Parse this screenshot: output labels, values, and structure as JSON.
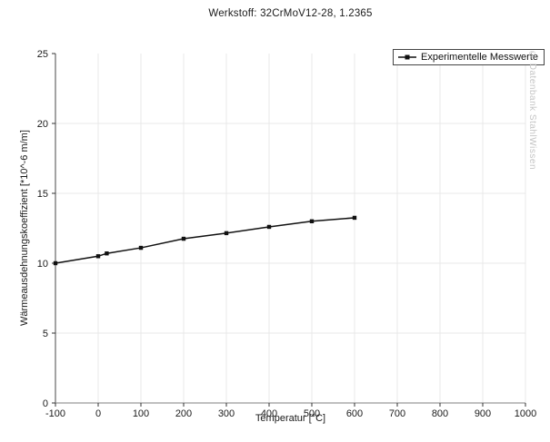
{
  "watermark": "© Datenbank StahlWissen",
  "colors": {
    "grid": "#e9e9e9",
    "x_axis": "#999999",
    "y_axis": "#666666",
    "tick": "#333333",
    "tick_label": "#1a1a1a",
    "line": "#111111",
    "legend_border": "#444444",
    "watermark": "#c5c5c5"
  },
  "chart_data": {
    "type": "line",
    "title": "Werkstoff: 32CrMoV12-28, 1.2365",
    "xlabel": "Temperatur [°C]",
    "ylabel": "Wärmeausdehnungskoeffizient [*10^-6 m/m]",
    "xlim": [
      -100,
      1000
    ],
    "ylim": [
      0,
      25
    ],
    "x_ticks": [
      -100,
      0,
      100,
      200,
      300,
      400,
      500,
      600,
      700,
      800,
      900,
      1000
    ],
    "y_ticks": [
      0,
      5,
      10,
      15,
      20,
      25
    ],
    "grid": true,
    "legend_position": "top-right",
    "series": [
      {
        "name": "Experimentelle Messwerte",
        "marker": "square",
        "x": [
          -100,
          0,
          20,
          100,
          200,
          300,
          400,
          500,
          600
        ],
        "y": [
          10.0,
          10.5,
          10.7,
          11.1,
          11.75,
          12.15,
          12.6,
          13.0,
          13.25
        ]
      }
    ]
  }
}
